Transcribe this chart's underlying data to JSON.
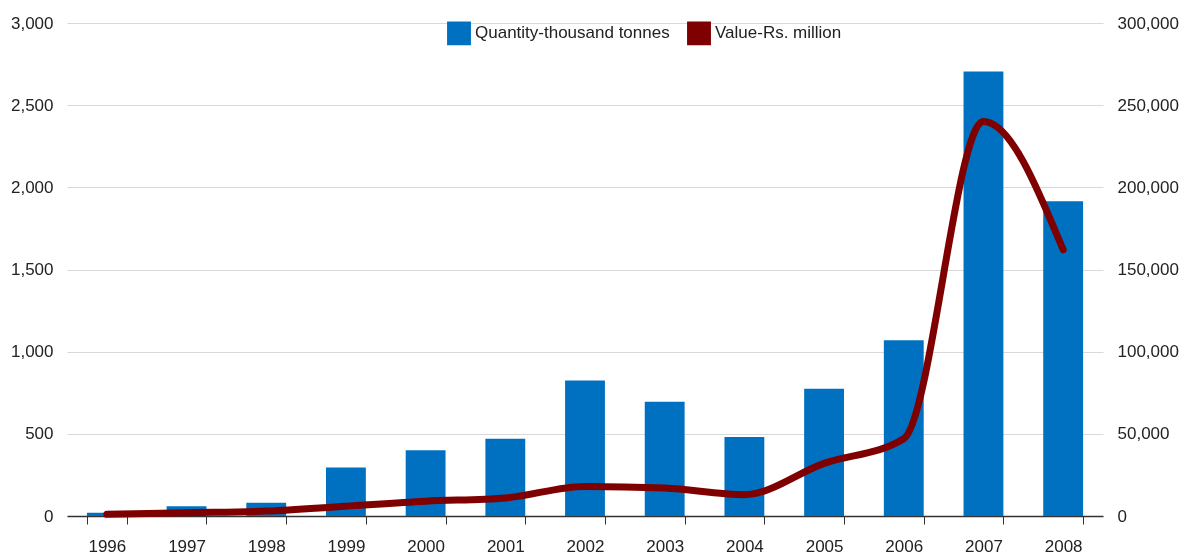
{
  "chart_data": {
    "type": "bar",
    "categories": [
      "1996",
      "1997",
      "1998",
      "1999",
      "2000",
      "2001",
      "2002",
      "2003",
      "2004",
      "2005",
      "2006",
      "2007",
      "2008"
    ],
    "series": [
      {
        "name": "Quantity-thousand tonnes",
        "color": "#0070c0",
        "values": [
          20,
          60,
          80,
          295,
          400,
          470,
          825,
          695,
          480,
          775,
          1070,
          2705,
          1915
        ]
      },
      {
        "name": "Value-Rs. million",
        "type": "line",
        "axis": "y2",
        "color": "#7f0000",
        "values": [
          1000,
          2000,
          3000,
          6000,
          9000,
          11000,
          18000,
          17000,
          13000,
          32000,
          47000,
          240000,
          162000
        ]
      }
    ],
    "ylim": [
      0,
      3000
    ],
    "yticks": [
      {
        "value": 0,
        "label": "0"
      },
      {
        "value": 500,
        "label": "500"
      },
      {
        "value": 1000,
        "label": "1,000"
      },
      {
        "value": 1500,
        "label": "1,500"
      },
      {
        "value": 2000,
        "label": "2,000"
      },
      {
        "value": 2500,
        "label": "2,500"
      },
      {
        "value": 3000,
        "label": "3,000"
      }
    ],
    "y2lim": [
      0,
      300000
    ],
    "y2ticks": [
      {
        "value": 0,
        "label": "0"
      },
      {
        "value": 50000,
        "label": "50,000"
      },
      {
        "value": 100000,
        "label": "100,000"
      },
      {
        "value": 150000,
        "label": "150,000"
      },
      {
        "value": 200000,
        "label": "200,000"
      },
      {
        "value": 250000,
        "label": "250,000"
      },
      {
        "value": 300000,
        "label": "300,000"
      }
    ],
    "grid": "y",
    "legend": "top right",
    "line_style": "solid",
    "marker": "none"
  }
}
